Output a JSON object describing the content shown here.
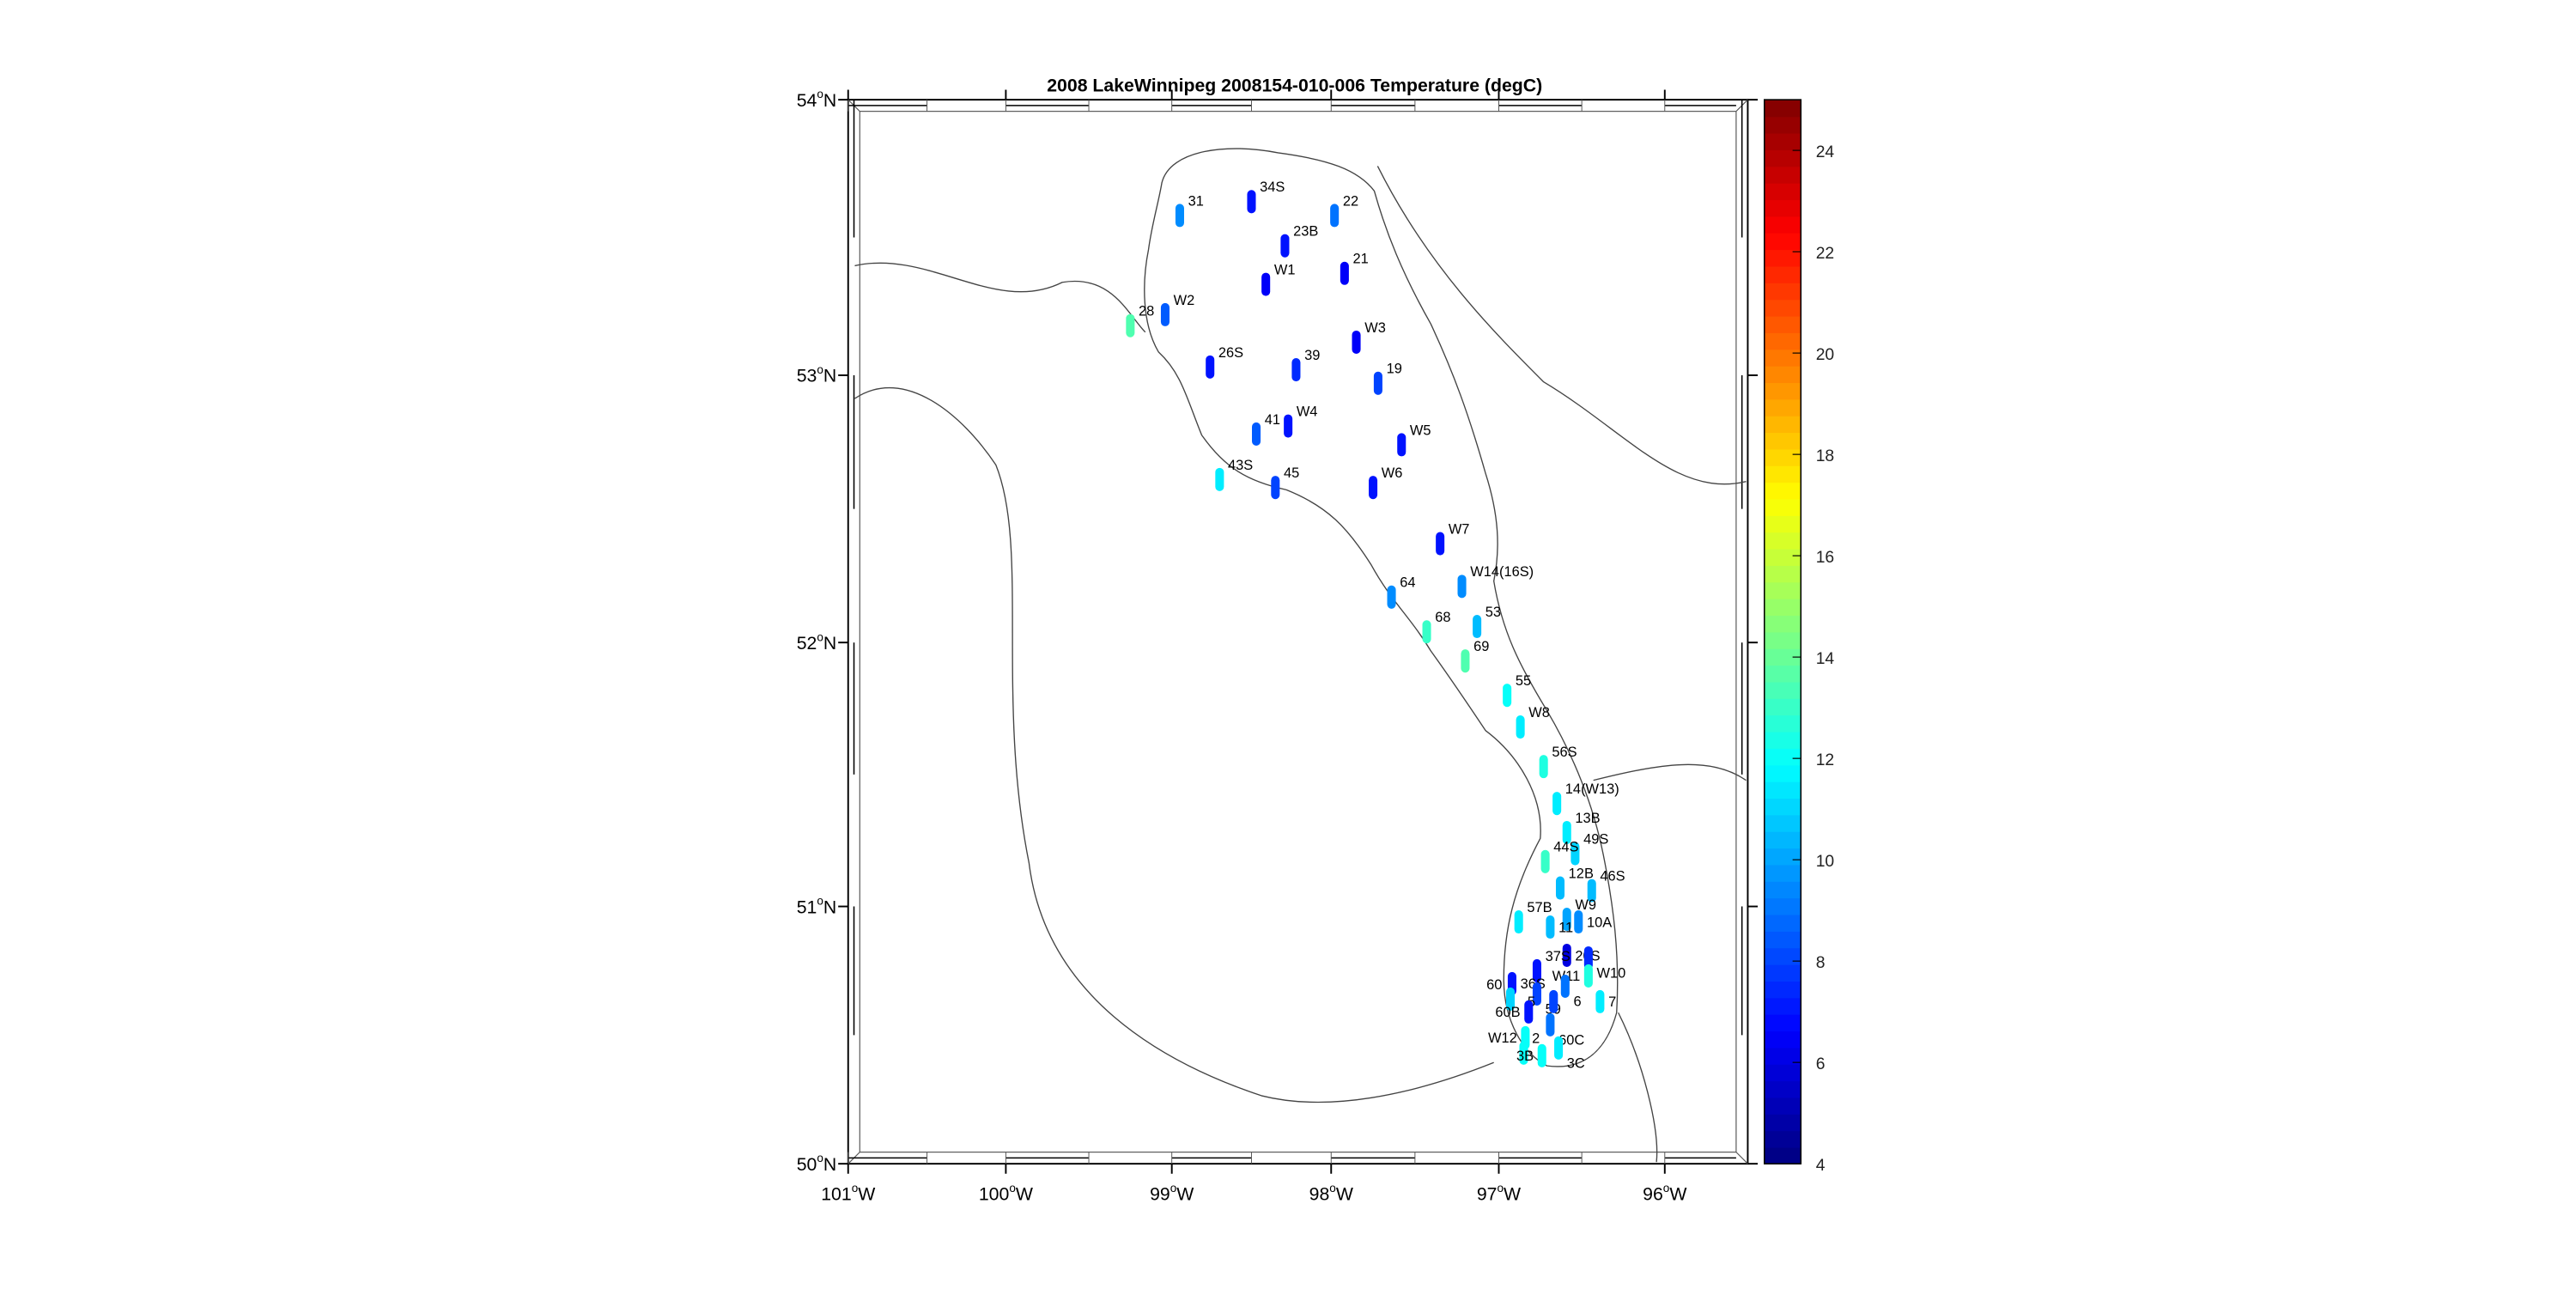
{
  "chart_data": {
    "type": "scatter",
    "title": "2008 LakeWinnipeg 2008154-010-006 Temperature (degC)",
    "projection": "map",
    "xlim": [
      -101.0,
      -95.5
    ],
    "ylim": [
      50,
      54
    ],
    "lon_ticks": [
      {
        "value": "101",
        "hemi": "W",
        "lon": -101
      },
      {
        "value": "100",
        "hemi": "W",
        "lon": -100
      },
      {
        "value": "99",
        "hemi": "W",
        "lon": -99
      },
      {
        "value": "98",
        "hemi": "W",
        "lon": -98
      },
      {
        "value": "97",
        "hemi": "W",
        "lon": -97
      },
      {
        "value": "96",
        "hemi": "W",
        "lon": -96
      }
    ],
    "lat_ticks": [
      {
        "value": "54",
        "hemi": "N",
        "lat": 54
      },
      {
        "value": "53",
        "hemi": "N",
        "lat": 53
      },
      {
        "value": "52",
        "hemi": "N",
        "lat": 52
      },
      {
        "value": "51",
        "hemi": "N",
        "lat": 51
      },
      {
        "value": "50",
        "hemi": "N",
        "lat": 50
      }
    ],
    "colorbar": {
      "colormap": "jet",
      "range": [
        4,
        25
      ],
      "ticks": [
        "4",
        "6",
        "8",
        "10",
        "12",
        "14",
        "16",
        "18",
        "20",
        "22",
        "24"
      ]
    },
    "stations": [
      {
        "name": "31",
        "lon": -98.95,
        "lat": 53.58,
        "temp": 9.5
      },
      {
        "name": "34S",
        "lon": -98.5,
        "lat": 53.63,
        "temp": 7
      },
      {
        "name": "22",
        "lon": -97.98,
        "lat": 53.58,
        "temp": 9
      },
      {
        "name": "23B",
        "lon": -98.29,
        "lat": 53.47,
        "temp": 7
      },
      {
        "name": "21",
        "lon": -97.92,
        "lat": 53.37,
        "temp": 6.5
      },
      {
        "name": "W1",
        "lon": -98.41,
        "lat": 53.33,
        "temp": 6.5
      },
      {
        "name": "W2",
        "lon": -99.04,
        "lat": 53.22,
        "temp": 8.5
      },
      {
        "name": "28",
        "lon": -99.25,
        "lat": 53.18,
        "temp": 13.5
      },
      {
        "name": "W3",
        "lon": -97.85,
        "lat": 53.12,
        "temp": 6.5
      },
      {
        "name": "26S",
        "lon": -98.76,
        "lat": 53.03,
        "temp": 7
      },
      {
        "name": "39",
        "lon": -98.22,
        "lat": 53.02,
        "temp": 7.5
      },
      {
        "name": "19",
        "lon": -97.72,
        "lat": 52.97,
        "temp": 8
      },
      {
        "name": "W4",
        "lon": -98.27,
        "lat": 52.81,
        "temp": 7
      },
      {
        "name": "41",
        "lon": -98.47,
        "lat": 52.78,
        "temp": 8.5
      },
      {
        "name": "W5",
        "lon": -97.58,
        "lat": 52.74,
        "temp": 7
      },
      {
        "name": "43S",
        "lon": -98.7,
        "lat": 52.61,
        "temp": 11.5
      },
      {
        "name": "45",
        "lon": -98.35,
        "lat": 52.58,
        "temp": 8
      },
      {
        "name": "W6",
        "lon": -97.75,
        "lat": 52.58,
        "temp": 7
      },
      {
        "name": "W7",
        "lon": -97.35,
        "lat": 52.37,
        "temp": 7
      },
      {
        "name": "64",
        "lon": -97.64,
        "lat": 52.17,
        "temp": 9.5
      },
      {
        "name": "W14(16S)",
        "lon": -97.22,
        "lat": 52.21,
        "temp": 9.5
      },
      {
        "name": "68",
        "lon": -97.43,
        "lat": 52.04,
        "temp": 13
      },
      {
        "name": "53",
        "lon": -97.13,
        "lat": 52.06,
        "temp": 10.5
      },
      {
        "name": "69",
        "lon": -97.2,
        "lat": 51.93,
        "temp": 13.5
      },
      {
        "name": "55",
        "lon": -96.95,
        "lat": 51.8,
        "temp": 12
      },
      {
        "name": "W8",
        "lon": -96.87,
        "lat": 51.68,
        "temp": 11.5
      },
      {
        "name": "56S",
        "lon": -96.73,
        "lat": 51.53,
        "temp": 12.5
      },
      {
        "name": "14(W13)",
        "lon": -96.65,
        "lat": 51.39,
        "temp": 11.5
      },
      {
        "name": "13B",
        "lon": -96.59,
        "lat": 51.28,
        "temp": 11.5
      },
      {
        "name": "49S",
        "lon": -96.54,
        "lat": 51.2,
        "temp": 11
      },
      {
        "name": "44S",
        "lon": -96.72,
        "lat": 51.17,
        "temp": 13
      },
      {
        "name": "12B",
        "lon": -96.63,
        "lat": 51.07,
        "temp": 10.5
      },
      {
        "name": "46S",
        "lon": -96.44,
        "lat": 51.06,
        "temp": 10.5
      },
      {
        "name": "W9",
        "lon": -96.59,
        "lat": 50.95,
        "temp": 10
      },
      {
        "name": "10A",
        "lon": -96.52,
        "lat": 50.94,
        "temp": 9.5
      },
      {
        "name": "57B",
        "lon": -96.88,
        "lat": 50.94,
        "temp": 11.5
      },
      {
        "name": "11",
        "lon": -96.69,
        "lat": 50.92,
        "temp": 10.5
      },
      {
        "name": "20S",
        "lon": -96.59,
        "lat": 50.81,
        "temp": 6
      },
      {
        "name": "W10",
        "lon": -96.46,
        "lat": 50.8,
        "temp": 7.5
      },
      {
        "name": "W11",
        "lon": -96.46,
        "lat": 50.73,
        "temp": 12.5
      },
      {
        "name": "37S",
        "lon": -96.77,
        "lat": 50.75,
        "temp": 7
      },
      {
        "name": "6",
        "lon": -96.6,
        "lat": 50.69,
        "temp": 9
      },
      {
        "name": "36S",
        "lon": -96.92,
        "lat": 50.7,
        "temp": 7
      },
      {
        "name": "59",
        "lon": -96.77,
        "lat": 50.66,
        "temp": 8
      },
      {
        "name": "5",
        "lon": -96.67,
        "lat": 50.63,
        "temp": 8
      },
      {
        "name": "7",
        "lon": -96.39,
        "lat": 50.63,
        "temp": 11.5
      },
      {
        "name": "60",
        "lon": -96.93,
        "lat": 50.64,
        "temp": 11
      },
      {
        "name": "60B",
        "lon": -96.82,
        "lat": 50.59,
        "temp": 7
      },
      {
        "name": "60C",
        "lon": -96.69,
        "lat": 50.54,
        "temp": 9
      },
      {
        "name": "W12",
        "lon": -96.84,
        "lat": 50.49,
        "temp": 12
      },
      {
        "name": "2",
        "lon": -96.85,
        "lat": 50.43,
        "temp": 12
      },
      {
        "name": "3B",
        "lon": -96.74,
        "lat": 50.42,
        "temp": 12
      },
      {
        "name": "3C",
        "lon": -96.64,
        "lat": 50.45,
        "temp": 11.5
      }
    ]
  }
}
